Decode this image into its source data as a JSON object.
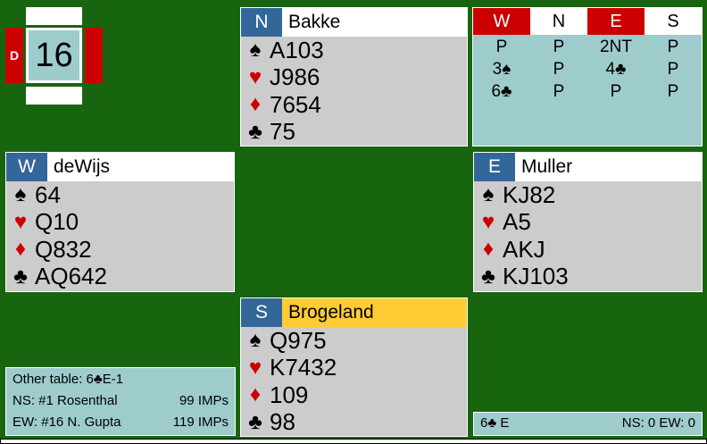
{
  "board": {
    "number": "16",
    "dealer": "D"
  },
  "north": {
    "seat": "N",
    "name": "Bakke",
    "spades": "A103",
    "hearts": "J986",
    "diamonds": "7654",
    "clubs": "75"
  },
  "west": {
    "seat": "W",
    "name": "deWijs",
    "spades": "64",
    "hearts": "Q10",
    "diamonds": "Q832",
    "clubs": "AQ642"
  },
  "east": {
    "seat": "E",
    "name": "Muller",
    "spades": "KJ82",
    "hearts": "A5",
    "diamonds": "AKJ",
    "clubs": "KJ103"
  },
  "south": {
    "seat": "S",
    "name": "Brogeland",
    "spades": "Q975",
    "hearts": "K7432",
    "diamonds": "109",
    "clubs": "98"
  },
  "suits": {
    "spade": "♠",
    "heart": "♥",
    "diamond": "♦",
    "club": "♣"
  },
  "bidding": {
    "headers": [
      "W",
      "N",
      "E",
      "S"
    ],
    "rows": [
      [
        "P",
        "P",
        "2NT",
        "P"
      ],
      [
        "3♠",
        "P",
        "4♣",
        "P"
      ],
      [
        "6♣",
        "P",
        "P",
        "P"
      ]
    ]
  },
  "info": {
    "other_table": "Other table: 6♣E-1",
    "ns_label": "NS: #1 Rosenthal",
    "ns_imps": "99 IMPs",
    "ew_label": "EW: #16 N. Gupta",
    "ew_imps": "119 IMPs"
  },
  "contract": {
    "text": "6♣ E",
    "score": "NS: 0 EW: 0"
  },
  "colors": {
    "felt": "#18650f",
    "vulnerable": "#cc0000",
    "seat": "#336699",
    "active_player": "#ffcc33",
    "panel": "#9ecccd",
    "hand": "#cccccc"
  }
}
